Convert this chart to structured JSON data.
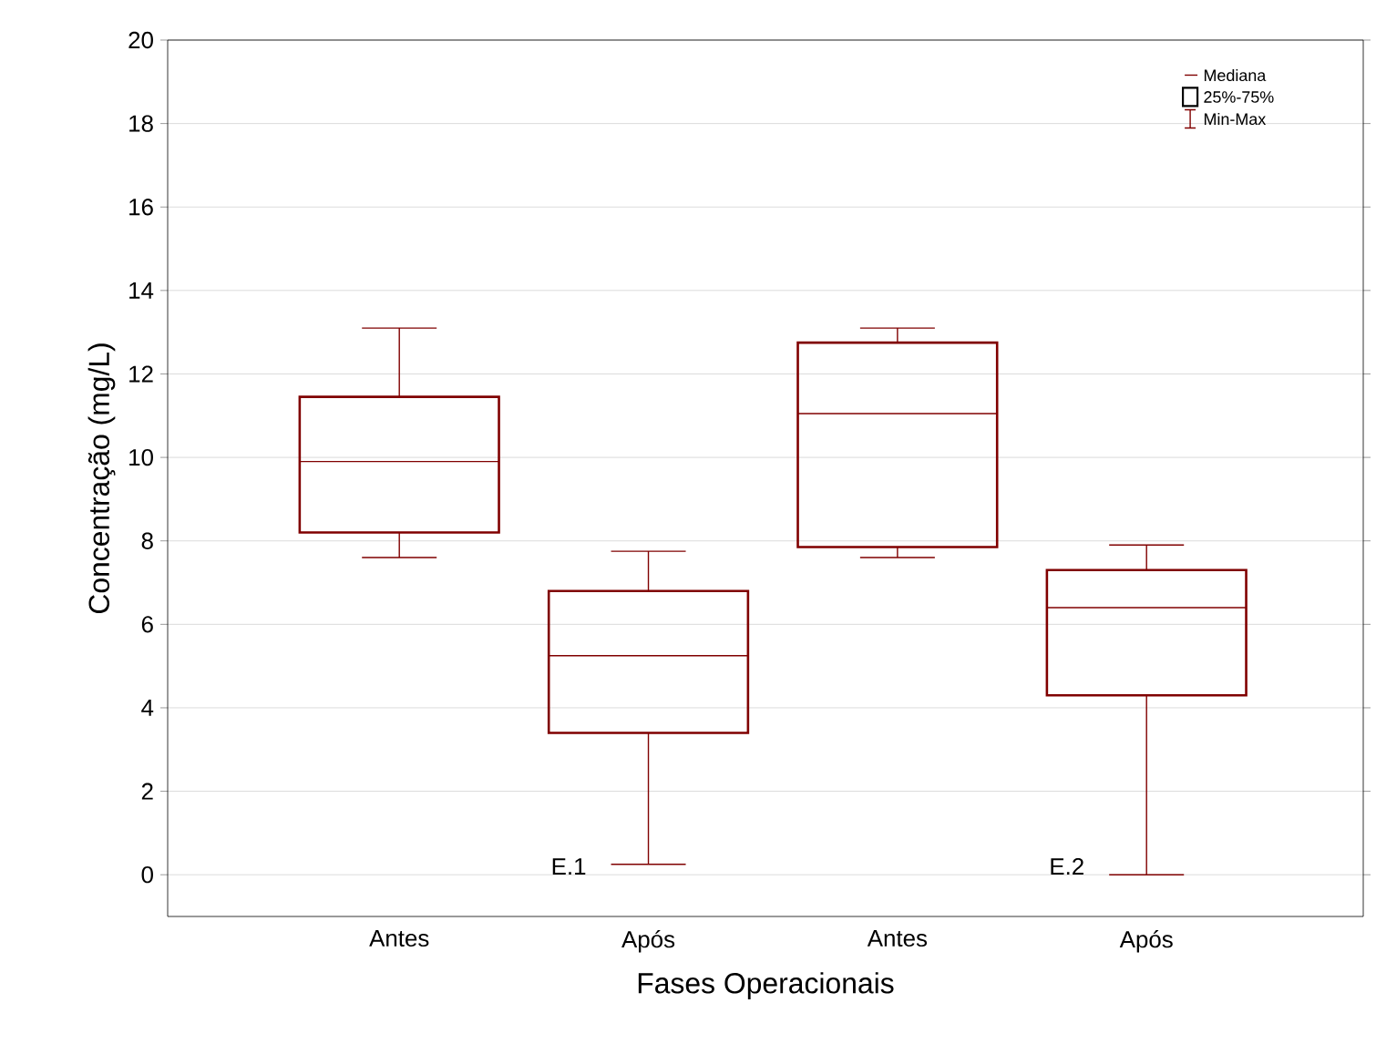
{
  "chart_data": {
    "type": "box",
    "xlabel": "Fases Operacionais",
    "ylabel": "Concentração (mg/L)",
    "categories": [
      "Antes",
      "Após",
      "Antes",
      "Após"
    ],
    "color": "#800000",
    "boxes": [
      {
        "low": 7.6,
        "q1": 8.2,
        "median": 9.9,
        "q3": 11.45,
        "high": 13.1
      },
      {
        "low": 0.25,
        "q1": 3.4,
        "median": 5.25,
        "q3": 6.8,
        "high": 7.75
      },
      {
        "low": 7.6,
        "q1": 7.85,
        "median": 11.05,
        "q3": 12.75,
        "high": 13.1
      },
      {
        "low": 0.0,
        "q1": 4.3,
        "median": 6.4,
        "q3": 7.3,
        "high": 7.9
      }
    ],
    "ylim": [
      -1,
      20
    ],
    "yticks": [
      0,
      2,
      4,
      6,
      8,
      10,
      12,
      14,
      16,
      18,
      20
    ],
    "grid": "y",
    "annotations": [
      "E.1",
      "E.2",
      "Mediana",
      "25%-75%",
      "Min-Max"
    ]
  }
}
